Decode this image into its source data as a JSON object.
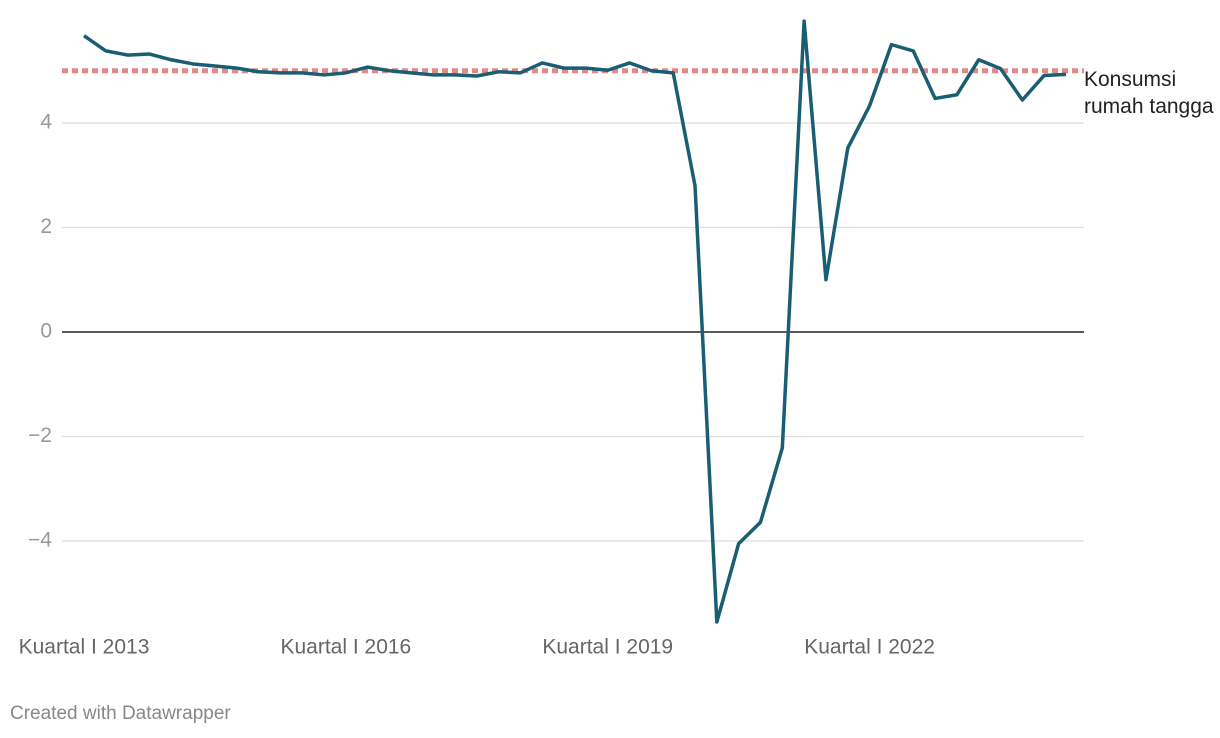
{
  "chart_data": {
    "type": "line",
    "credit": "Created with Datawrapper",
    "categories": [
      "Kuartal I 2013",
      null,
      null,
      null,
      null,
      null,
      null,
      null,
      null,
      null,
      null,
      null,
      "Kuartal I 2016",
      null,
      null,
      null,
      null,
      null,
      null,
      null,
      null,
      null,
      null,
      null,
      "Kuartal I 2019",
      null,
      null,
      null,
      null,
      null,
      null,
      null,
      null,
      null,
      null,
      null,
      "Kuartal I 2022",
      null,
      null,
      null,
      null,
      null,
      null,
      null,
      null,
      null
    ],
    "series": [
      {
        "name": "Konsumsi rumah tangga",
        "color": "#1a5e73",
        "values": [
          5.67,
          5.38,
          5.3,
          5.32,
          5.21,
          5.13,
          5.09,
          5.05,
          4.98,
          4.96,
          4.96,
          4.92,
          4.96,
          5.07,
          5.0,
          4.96,
          4.92,
          4.92,
          4.9,
          4.98,
          4.96,
          5.15,
          5.05,
          5.05,
          5.01,
          5.15,
          5.0,
          4.96,
          2.8,
          -5.55,
          -4.05,
          -3.64,
          -2.22,
          5.95,
          1.0,
          3.52,
          4.33,
          5.5,
          5.38,
          4.47,
          4.54,
          5.21,
          5.04,
          4.44,
          4.91,
          4.93
        ]
      }
    ],
    "reference_line": {
      "value": 5,
      "color": "#e08a8a"
    },
    "ylim": [
      -5.6,
      6.0
    ],
    "yticks": [
      {
        "value": -4,
        "label": "−4"
      },
      {
        "value": -2,
        "label": "−2"
      },
      0,
      2,
      4
    ],
    "grid": true
  }
}
